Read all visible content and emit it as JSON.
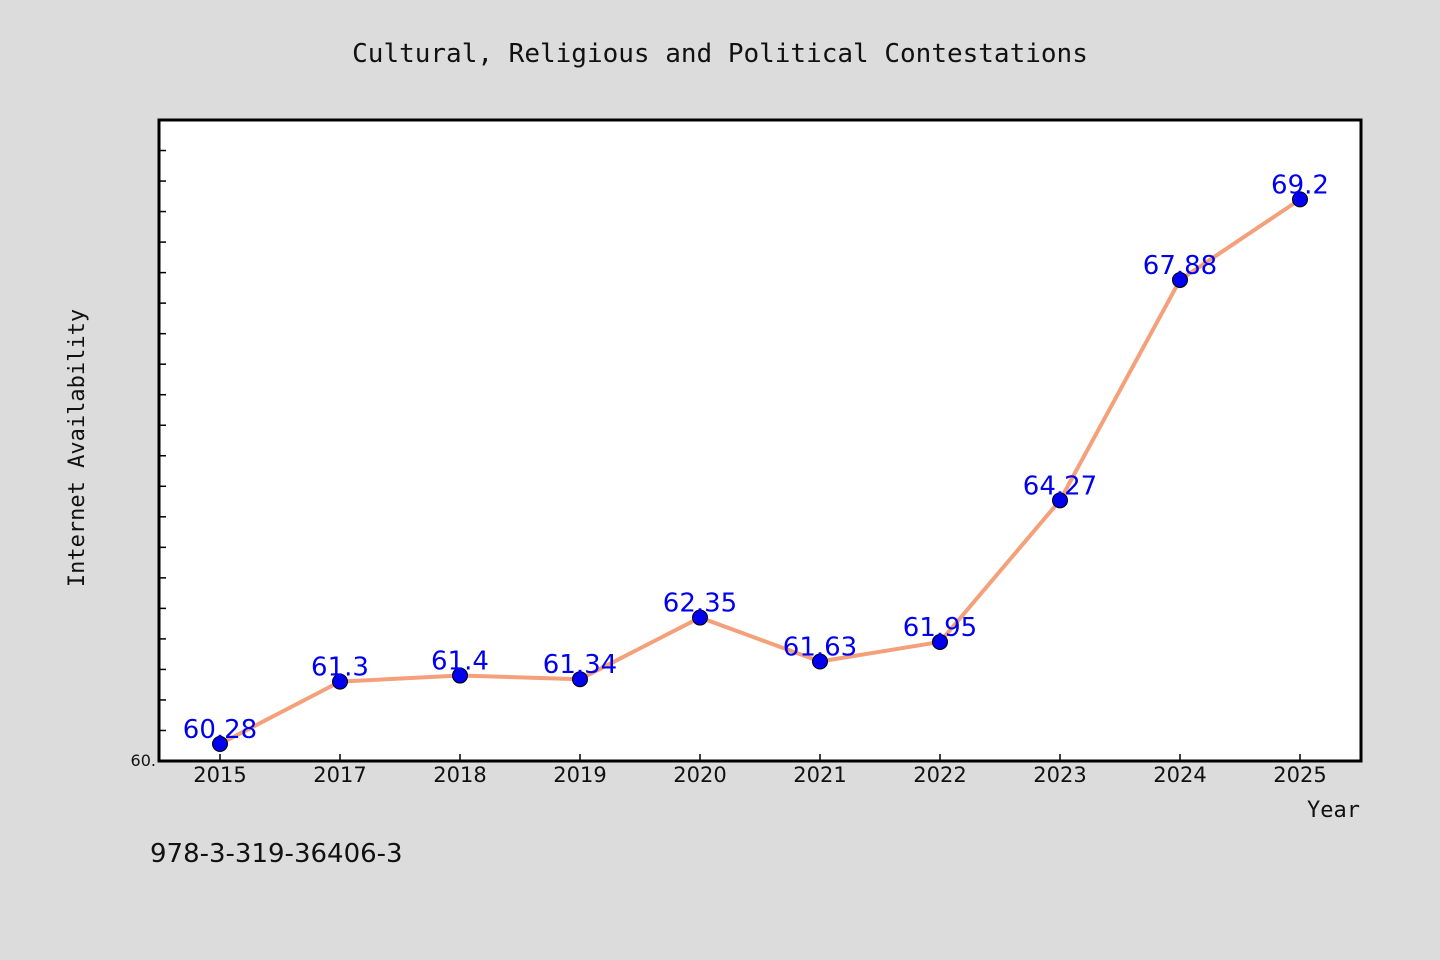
{
  "chart_data": {
    "type": "line",
    "title": "Cultural, Religious and Political Contestations",
    "xlabel": "Year",
    "ylabel": "Internet Availability",
    "categories": [
      "2015",
      "2017",
      "2018",
      "2019",
      "2020",
      "2021",
      "2022",
      "2023",
      "2024",
      "2025"
    ],
    "values": [
      60.28,
      61.3,
      61.4,
      61.34,
      62.35,
      61.63,
      61.95,
      64.27,
      67.88,
      69.2
    ],
    "data_labels": [
      "60.28",
      "61.3",
      "61.4",
      "61.34",
      "62.35",
      "61.63",
      "61.95",
      "64.27",
      "67.88",
      "69.2"
    ],
    "ylim": [
      60.0,
      70.5
    ],
    "y_min_label": "60.",
    "grid": false,
    "line_color": "#f4a07a",
    "marker_color": "#0000ee",
    "label_color": "#0000ee"
  },
  "footer": {
    "isbn": "978-3-319-36406-3"
  }
}
